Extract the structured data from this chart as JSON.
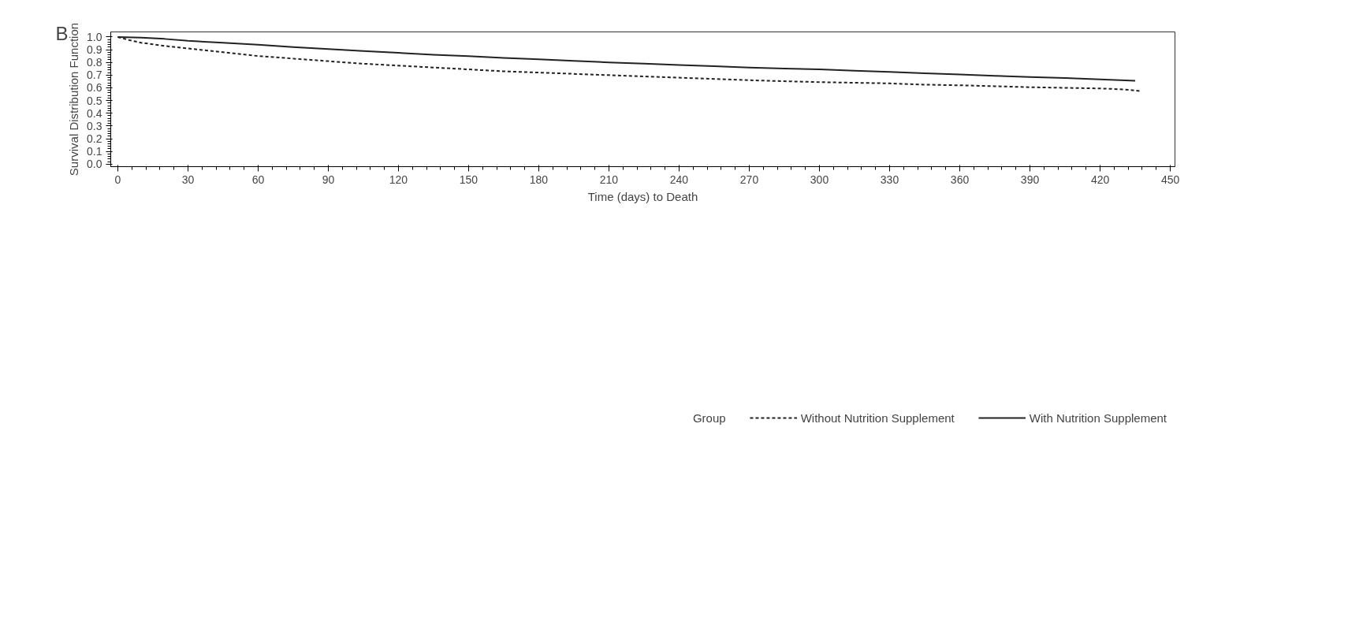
{
  "chart_data": {
    "type": "line",
    "xlabel": "Time (days) to Death",
    "ylabel": "Survival Distribution Function",
    "legend_title": "Group",
    "annotations": [
      "B"
    ],
    "xlim": [
      -3,
      452
    ],
    "xticks": [
      0,
      30,
      60,
      90,
      120,
      150,
      180,
      210,
      240,
      270,
      300,
      330,
      360,
      390,
      420,
      450
    ],
    "ylim": [
      -0.02,
      1.04
    ],
    "yticks": [
      {
        "value": 0,
        "label": "0.0"
      },
      0.1,
      0.2,
      0.3,
      0.4,
      0.5,
      0.6,
      0.7,
      0.8,
      0.9,
      {
        "value": 1,
        "label": "1.0"
      }
    ],
    "grid": false,
    "legend": "bottom",
    "series": [
      {
        "name": "Without Nutrition Supplement",
        "color": "#222222",
        "line_style": "dashed",
        "x": [
          0,
          5,
          10,
          20,
          30,
          45,
          60,
          75,
          90,
          105,
          120,
          135,
          150,
          165,
          180,
          195,
          210,
          225,
          240,
          255,
          270,
          285,
          300,
          315,
          330,
          345,
          360,
          375,
          390,
          405,
          420,
          430,
          437
        ],
        "values": [
          1.0,
          0.975,
          0.955,
          0.93,
          0.91,
          0.88,
          0.85,
          0.83,
          0.81,
          0.79,
          0.775,
          0.76,
          0.745,
          0.73,
          0.72,
          0.71,
          0.7,
          0.69,
          0.68,
          0.67,
          0.66,
          0.652,
          0.645,
          0.64,
          0.635,
          0.625,
          0.62,
          0.613,
          0.605,
          0.6,
          0.595,
          0.588,
          0.575
        ]
      },
      {
        "name": "With Nutrition Supplement",
        "color": "#222222",
        "line_style": "solid",
        "x": [
          0,
          10,
          20,
          30,
          45,
          60,
          75,
          90,
          105,
          120,
          135,
          150,
          165,
          180,
          195,
          210,
          225,
          240,
          255,
          270,
          285,
          300,
          315,
          330,
          345,
          360,
          375,
          390,
          405,
          420,
          435
        ],
        "values": [
          1.0,
          0.995,
          0.985,
          0.97,
          0.955,
          0.94,
          0.92,
          0.905,
          0.89,
          0.875,
          0.86,
          0.85,
          0.835,
          0.825,
          0.812,
          0.8,
          0.79,
          0.78,
          0.77,
          0.76,
          0.752,
          0.745,
          0.735,
          0.725,
          0.715,
          0.705,
          0.695,
          0.685,
          0.677,
          0.667,
          0.655
        ]
      }
    ]
  }
}
